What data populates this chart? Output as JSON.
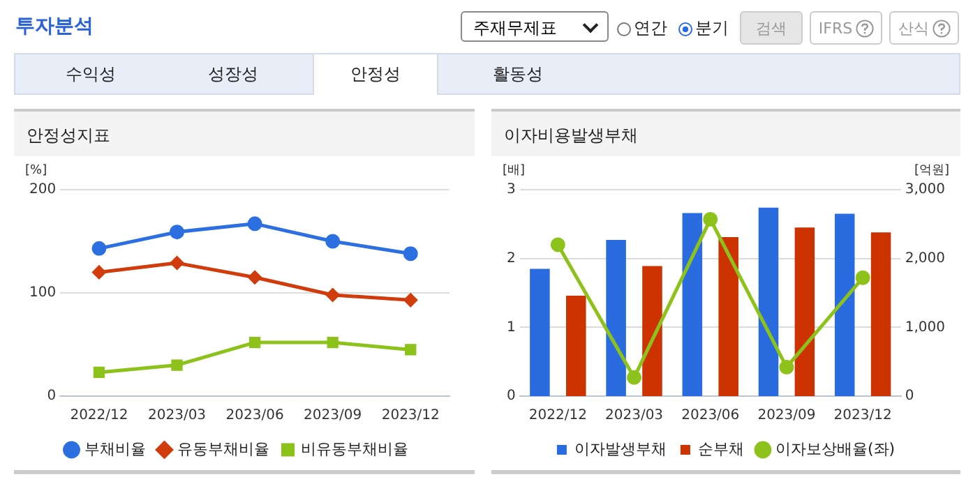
{
  "chart_data": [
    {
      "type": "other",
      "title": "투자분석",
      "annotations": [
        "주재무제표",
        "연간",
        "분기",
        "검색",
        "IFRS",
        "산식",
        "수익성",
        "성장성",
        "안정성",
        "활동성"
      ]
    },
    {
      "type": "line",
      "title": "안정성지표",
      "ylabel": "[%]",
      "categories": [
        "2022/12",
        "2023/03",
        "2023/06",
        "2023/09",
        "2023/12"
      ],
      "ylim": [
        0,
        200
      ],
      "yticks": [
        0,
        100,
        200
      ],
      "grid": "y",
      "legend": "bottom",
      "series": [
        {
          "name": "부채비율",
          "color": "#2b6fe0",
          "marker": "circle",
          "values": [
            143,
            159,
            167,
            150,
            138
          ]
        },
        {
          "name": "유동부채비율",
          "color": "#d03c0c",
          "marker": "diamond",
          "values": [
            120,
            129,
            115,
            98,
            93
          ]
        },
        {
          "name": "비유동부채비율",
          "color": "#8cc21a",
          "marker": "square",
          "values": [
            23,
            30,
            52,
            52,
            45
          ]
        }
      ]
    },
    {
      "type": "bar",
      "title": "이자비용발생부채",
      "ylabel": "[배]",
      "y2label": "[억원]",
      "categories": [
        "2022/12",
        "2023/03",
        "2023/06",
        "2023/09",
        "2023/12"
      ],
      "ylim": [
        0,
        3
      ],
      "yticks": [
        0,
        1,
        2,
        3
      ],
      "y2lim": [
        0,
        3000
      ],
      "y2ticks": [
        0,
        {
          "value": 1000,
          "label": "1,000"
        },
        {
          "value": 2000,
          "label": "2,000"
        },
        {
          "value": 3000,
          "label": "3,000"
        }
      ],
      "grid": "y",
      "legend": "bottom",
      "series": [
        {
          "name": "이자발생부채",
          "color": "#2a6ce0",
          "axis": "y2",
          "values": [
            1850,
            2270,
            2660,
            2740,
            2650
          ]
        },
        {
          "name": "순부채",
          "color": "#cc3300",
          "axis": "y2",
          "values": [
            1460,
            1890,
            2310,
            2450,
            2380
          ]
        },
        {
          "name": "이자보상배율(좌)",
          "type": "line",
          "color": "#8cc21a",
          "marker": "circle",
          "axis": "y",
          "values": [
            2.2,
            0.27,
            2.57,
            0.42,
            1.72
          ]
        }
      ]
    }
  ]
}
